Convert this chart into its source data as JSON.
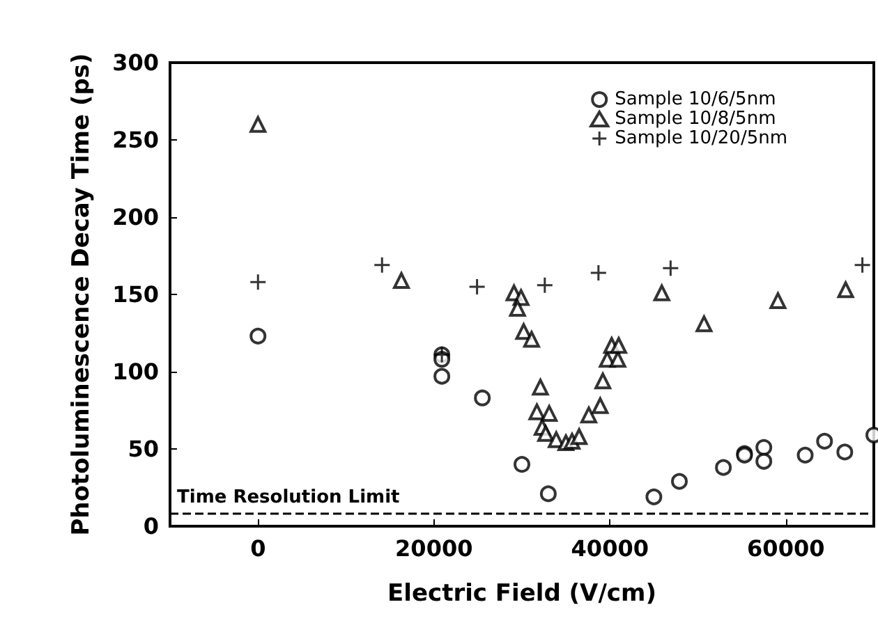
{
  "chart_data": {
    "type": "scatter",
    "xlabel": "Electric Field (V/cm)",
    "ylabel": "Photoluminescence Decay Time (ps)",
    "xlim": [
      -10000,
      70000
    ],
    "xticks": [
      0,
      20000,
      40000,
      60000
    ],
    "ylim": [
      0,
      300
    ],
    "yticks": [
      0,
      50,
      100,
      150,
      200,
      250,
      300
    ],
    "grid": false,
    "legend": "top right",
    "ref_lines": [
      {
        "axis": "y",
        "value": 8,
        "label": "Time Resolution Limit",
        "line_style": "dashed",
        "color": "#000000"
      }
    ],
    "series": [
      {
        "name": "Sample 10/6/5nm",
        "color": "#000000",
        "marker": "circle",
        "x": [
          0,
          20900,
          20900,
          20900,
          25500,
          30000,
          33000,
          45000,
          47900,
          52900,
          55300,
          55300,
          57500,
          57500,
          62200,
          64400,
          66700,
          70000
        ],
        "values": [
          123,
          111,
          108,
          97,
          83,
          40,
          21,
          19,
          29,
          38,
          47,
          46,
          51,
          42,
          46,
          55,
          48,
          59
        ]
      },
      {
        "name": "Sample 10/8/5nm",
        "color": "#000000",
        "marker": "triangle",
        "x": [
          0,
          16300,
          29100,
          29900,
          29500,
          30200,
          31100,
          32100,
          31700,
          33100,
          32300,
          32700,
          33900,
          35000,
          35700,
          36500,
          37600,
          38900,
          39200,
          39700,
          40900,
          40200,
          41000,
          45900,
          50700,
          59100,
          66800
        ],
        "values": [
          260,
          159,
          151,
          148,
          141,
          126,
          121,
          90,
          74,
          73,
          64,
          60,
          56,
          54,
          55,
          58,
          72,
          78,
          94,
          108,
          108,
          117,
          117,
          151,
          131,
          146,
          153
        ]
      },
      {
        "name": "Sample 10/20/5nm",
        "color": "#000000",
        "marker": "cross",
        "x": [
          0,
          14100,
          20900,
          24900,
          32600,
          38700,
          46900,
          68700
        ],
        "values": [
          158,
          169,
          111,
          155,
          156,
          164,
          167,
          169
        ]
      }
    ]
  }
}
